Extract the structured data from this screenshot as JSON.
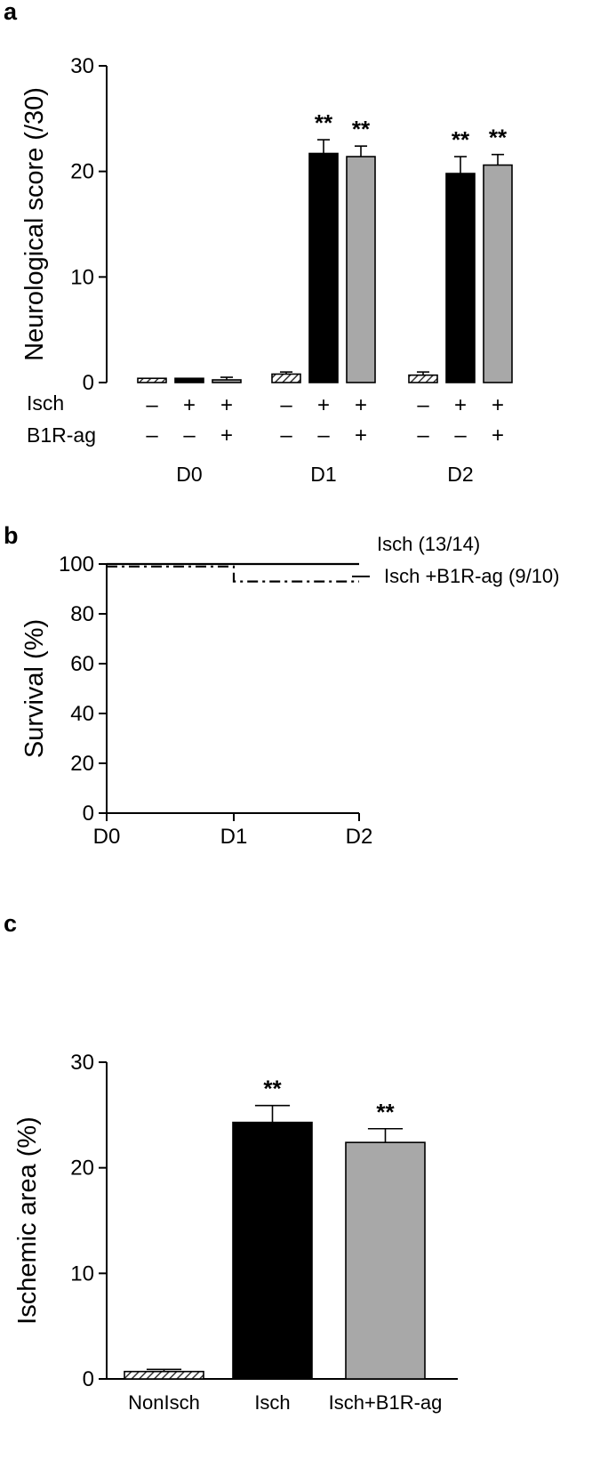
{
  "colors": {
    "isch": "#000000",
    "isch_b1r": "#a8a8a8",
    "nonisch_hatch": "#404040",
    "axis": "#000000"
  },
  "chart_data": [
    {
      "panel": "a",
      "type": "bar",
      "ylabel": "Neurological score (/30)",
      "ylim": [
        0,
        30
      ],
      "yticks": [
        0,
        10,
        20,
        30
      ],
      "row_labels": [
        "Isch",
        "B1R-ag"
      ],
      "groups": [
        {
          "label": "D0",
          "bars": [
            {
              "isch": "–",
              "b1r": "–",
              "fill": "hatch",
              "value": 0.4,
              "error": 0,
              "sig": ""
            },
            {
              "isch": "+",
              "b1r": "–",
              "fill": "black",
              "value": 0.4,
              "error": 0,
              "sig": ""
            },
            {
              "isch": "+",
              "b1r": "+",
              "fill": "grey",
              "value": 0.2,
              "error": 0.3,
              "sig": ""
            }
          ]
        },
        {
          "label": "D1",
          "bars": [
            {
              "isch": "–",
              "b1r": "–",
              "fill": "hatch",
              "value": 0.8,
              "error": 0.2,
              "sig": ""
            },
            {
              "isch": "+",
              "b1r": "–",
              "fill": "black",
              "value": 21.7,
              "error": 1.3,
              "sig": "**"
            },
            {
              "isch": "+",
              "b1r": "+",
              "fill": "grey",
              "value": 21.4,
              "error": 1.0,
              "sig": "**"
            }
          ]
        },
        {
          "label": "D2",
          "bars": [
            {
              "isch": "–",
              "b1r": "–",
              "fill": "hatch",
              "value": 0.7,
              "error": 0.3,
              "sig": ""
            },
            {
              "isch": "+",
              "b1r": "–",
              "fill": "black",
              "value": 19.8,
              "error": 1.6,
              "sig": "**"
            },
            {
              "isch": "+",
              "b1r": "+",
              "fill": "grey",
              "value": 20.6,
              "error": 1.0,
              "sig": "**"
            }
          ]
        }
      ]
    },
    {
      "panel": "b",
      "type": "line",
      "ylabel": "Survival (%)",
      "ylim": [
        0,
        100
      ],
      "yticks": [
        0,
        20,
        40,
        60,
        80,
        100
      ],
      "categories": [
        "D0",
        "D1",
        "D2"
      ],
      "series": [
        {
          "name": "Isch (13/14)",
          "style": "solid",
          "values": [
            100,
            100,
            100
          ]
        },
        {
          "name": "Isch +B1R-ag (9/10)",
          "style": "dashdot",
          "values": [
            99,
            93,
            93
          ]
        }
      ]
    },
    {
      "panel": "c",
      "type": "bar",
      "ylabel": "Ischemic area (%)",
      "ylim": [
        0,
        30
      ],
      "yticks": [
        0,
        10,
        20,
        30
      ],
      "categories": [
        "NonIsch",
        "Isch",
        "Isch+B1R-ag"
      ],
      "bars": [
        {
          "fill": "hatch",
          "value": 0.7,
          "error": 0.2,
          "sig": ""
        },
        {
          "fill": "black",
          "value": 24.3,
          "error": 1.6,
          "sig": "**"
        },
        {
          "fill": "grey",
          "value": 22.4,
          "error": 1.3,
          "sig": "**"
        }
      ]
    }
  ]
}
